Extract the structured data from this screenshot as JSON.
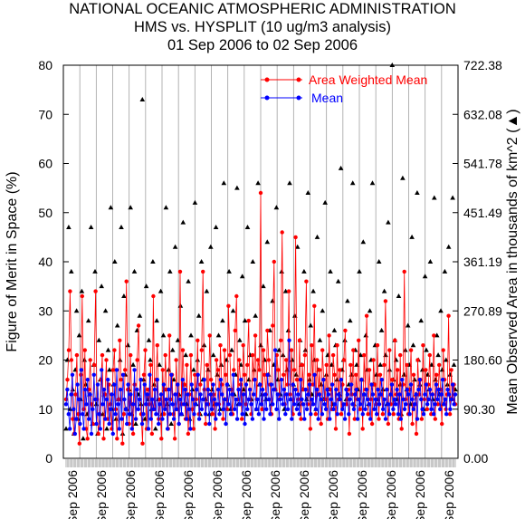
{
  "header": {
    "line1": "NATIONAL OCEANIC ATMOSPHERIC ADMINISTRATION",
    "line2": "HMS vs. HYSPLIT (10 ug/m3 analysis)",
    "line3": "01 Sep 2006 to 02 Sep 2006"
  },
  "chart_data": {
    "type": "scatter",
    "title": "HMS vs. HYSPLIT (10 ug/m3 analysis)",
    "ylabel": "Figure of Merit in Space (%)",
    "y2label": "Mean Observed Area in thousands of km^2 (▲)",
    "ylim": [
      0,
      80
    ],
    "y2lim": [
      0,
      722.38
    ],
    "yticks": [
      "0",
      "10",
      "20",
      "30",
      "40",
      "50",
      "60",
      "70",
      "80"
    ],
    "y2ticks": [
      "0.00",
      "90.30",
      "180.60",
      "270.89",
      "361.19",
      "451.49",
      "541.78",
      "632.08",
      "722.38"
    ],
    "xtick_label": "Sep 2006",
    "xtick_count": 14,
    "grid": "vertical lines",
    "legend_position": "top-right",
    "colors": {
      "weighted": "#ff0000",
      "mean": "#0000ff",
      "area": "#000000",
      "grid": "#a0a0a0"
    },
    "series": [
      {
        "name": "Area Weighted Mean",
        "marker": "circle",
        "color": "#ff0000",
        "values": [
          12,
          16,
          22,
          34,
          20,
          8,
          5,
          13,
          21,
          9,
          3,
          17,
          33,
          10,
          22,
          6,
          4,
          14,
          20,
          11,
          7,
          19,
          34,
          12,
          5,
          9,
          16,
          21,
          4,
          13,
          20,
          8,
          15,
          11,
          6,
          18,
          22,
          10,
          4,
          12,
          24,
          16,
          3,
          9,
          18,
          36,
          14,
          7,
          21,
          11,
          5,
          15,
          8,
          20,
          27,
          12,
          9,
          3,
          17,
          22,
          6,
          14,
          11,
          19,
          5,
          33,
          10,
          16,
          23,
          8,
          12,
          4,
          18,
          9,
          21,
          14,
          6,
          25,
          12,
          17,
          9,
          4,
          20,
          13,
          7,
          38,
          11,
          22,
          15,
          8,
          19,
          5,
          13,
          21,
          10,
          6,
          17,
          12,
          24,
          9,
          15,
          22,
          38,
          14,
          7,
          19,
          11,
          25,
          16,
          9,
          13,
          6,
          20,
          18,
          11,
          23,
          15,
          8,
          22,
          17,
          10,
          31,
          21,
          14,
          9,
          18,
          26,
          33,
          12,
          20,
          15,
          8,
          23,
          17,
          11,
          19,
          28,
          14,
          9,
          21,
          16,
          25,
          12,
          20,
          18,
          54,
          10,
          22,
          17,
          13,
          26,
          20,
          15,
          9,
          27,
          40,
          14,
          21,
          18,
          12,
          24,
          46,
          17,
          11,
          20,
          15,
          34,
          13,
          22,
          9,
          18,
          45,
          16,
          12,
          24,
          8,
          19,
          14,
          21,
          36,
          11,
          17,
          6,
          23,
          15,
          31,
          9,
          20,
          13,
          18,
          7,
          22,
          16,
          12,
          19,
          8,
          25,
          14,
          10,
          21,
          17,
          6,
          23,
          12,
          18,
          9,
          15,
          20,
          26,
          11,
          14,
          5,
          19,
          13,
          22,
          8,
          17,
          12,
          24,
          10,
          16,
          6,
          21,
          14,
          29,
          9,
          18,
          12,
          7,
          20,
          15,
          11,
          23,
          8,
          17,
          13,
          9,
          19,
          32,
          14,
          7,
          22,
          11,
          16,
          9,
          24,
          13,
          18,
          8,
          21,
          6,
          15,
          38,
          12,
          19,
          9,
          14,
          22,
          7,
          17,
          11,
          5,
          20,
          13,
          16,
          8,
          23,
          12,
          18,
          10,
          15,
          21,
          9,
          13,
          25,
          8,
          17,
          11,
          19,
          14,
          7,
          22,
          16,
          10,
          13,
          29,
          9,
          18,
          12,
          15,
          11
        ]
      },
      {
        "name": "Mean",
        "marker": "circle",
        "color": "#0000ff",
        "values": [
          11,
          14,
          9,
          6,
          13,
          17,
          10,
          5,
          8,
          15,
          12,
          7,
          18,
          9,
          6,
          14,
          11,
          16,
          8,
          13,
          5,
          10,
          17,
          12,
          7,
          15,
          9,
          6,
          18,
          11,
          14,
          8,
          12,
          16,
          7,
          10,
          13,
          5,
          15,
          9,
          18,
          11,
          6,
          14,
          8,
          17,
          12,
          10,
          7,
          15,
          9,
          13,
          6,
          11,
          18,
          8,
          14,
          10,
          12,
          16,
          7,
          9,
          15,
          11,
          13,
          6,
          17,
          8,
          12,
          10,
          14,
          9,
          16,
          7,
          11,
          13,
          8,
          15,
          10,
          12,
          6,
          14,
          9,
          17,
          11,
          8,
          13,
          10,
          15,
          7,
          12,
          9,
          16,
          11,
          14,
          8,
          13,
          10,
          6,
          15,
          12,
          9,
          11,
          14,
          17,
          8,
          13,
          10,
          12,
          16,
          9,
          11,
          14,
          7,
          13,
          10,
          15,
          12,
          8,
          11,
          14,
          9,
          16,
          13,
          10,
          12,
          7,
          15,
          11,
          14,
          9,
          13,
          17,
          10,
          12,
          8,
          14,
          11,
          16,
          9,
          13,
          7,
          15,
          10,
          12,
          14,
          11,
          8,
          13,
          16,
          10,
          12,
          9,
          15,
          11,
          14,
          8,
          13,
          10,
          17,
          12,
          9,
          15,
          11,
          14,
          22,
          10,
          13,
          8,
          12,
          16,
          11,
          14,
          9,
          13,
          10,
          24,
          12,
          8,
          15,
          11,
          14,
          10,
          13,
          9,
          16,
          12,
          11,
          8,
          14,
          10,
          13,
          15,
          9,
          12,
          11,
          17,
          10,
          14,
          8,
          13,
          12,
          9,
          16,
          11,
          10,
          14,
          13,
          8,
          12,
          15,
          10,
          11,
          14,
          9,
          13,
          12,
          16,
          10,
          11,
          8,
          14,
          13,
          9,
          12,
          15,
          11,
          10,
          13,
          14,
          8,
          12,
          11,
          16,
          9,
          13,
          10,
          14,
          12,
          11,
          8,
          15,
          13,
          10,
          12,
          9,
          14,
          11,
          13,
          16,
          10,
          12,
          8,
          14,
          11,
          9,
          13,
          15,
          10,
          12,
          11,
          14,
          9,
          13,
          8,
          16,
          12,
          10,
          11,
          14,
          13,
          9,
          15,
          12,
          10,
          11,
          13,
          8,
          14,
          16,
          12,
          10,
          9,
          13,
          15,
          11,
          12,
          14,
          10,
          13,
          9,
          11,
          15,
          12,
          14,
          10,
          13,
          16,
          11,
          12,
          9,
          14,
          13,
          10,
          12,
          15,
          11,
          13
        ]
      },
      {
        "name": "Mean Observed Area",
        "marker": "triangle",
        "color": "#000000",
        "values": [
          6,
          20,
          47,
          10,
          38,
          14,
          5,
          18,
          30,
          8,
          25,
          12,
          34,
          4,
          20,
          15,
          9,
          28,
          13,
          47,
          7,
          19,
          38,
          11,
          5,
          24,
          16,
          35,
          9,
          13,
          30,
          6,
          22,
          18,
          51,
          10,
          15,
          40,
          8,
          27,
          12,
          20,
          47,
          5,
          33,
          17,
          10,
          23,
          14,
          51,
          9,
          19,
          38,
          7,
          26,
          13,
          29,
          11,
          73,
          16,
          8,
          35,
          12,
          24,
          20,
          10,
          40,
          15,
          6,
          28,
          12,
          19,
          34,
          9,
          25,
          14,
          51,
          11,
          18,
          38,
          7,
          22,
          16,
          43,
          10,
          24,
          13,
          31,
          9,
          48,
          15,
          21,
          11,
          36,
          8,
          25,
          14,
          18,
          52,
          11,
          20,
          29,
          9,
          40,
          16,
          23,
          12,
          34,
          18,
          9,
          43,
          14,
          21,
          11,
          47,
          17,
          25,
          10,
          19,
          28,
          56,
          12,
          20,
          15,
          38,
          10,
          22,
          30,
          13,
          17,
          55,
          11,
          24,
          19,
          37,
          14,
          28,
          9,
          47,
          16,
          21,
          12,
          40,
          18,
          29,
          10,
          56,
          15,
          23,
          13,
          35,
          20,
          12,
          44,
          17,
          26,
          11,
          32,
          19,
          14,
          51,
          16,
          22,
          13,
          38,
          21,
          10,
          34,
          18,
          26,
          56,
          12,
          20,
          15,
          29,
          17,
          43,
          11,
          24,
          19,
          14,
          38,
          22,
          12,
          54,
          16,
          27,
          13,
          34,
          20,
          10,
          45,
          18,
          24,
          15,
          30,
          12,
          52,
          17,
          21,
          14,
          38,
          19,
          11,
          26,
          23,
          16,
          36,
          13,
          59,
          18,
          20,
          24,
          12,
          32,
          15,
          28,
          17,
          56,
          11,
          22,
          19,
          14,
          38,
          21,
          16,
          44,
          13,
          25,
          18,
          11,
          30,
          20,
          56,
          15,
          23,
          17,
          12,
          40,
          19,
          26,
          14,
          34,
          21,
          11,
          48,
          18,
          13,
          80,
          16,
          24,
          20,
          12,
          33,
          15,
          9,
          57,
          17,
          22,
          14,
          27,
          19,
          11,
          45,
          23,
          16,
          13,
          54,
          20,
          15,
          28,
          18,
          10,
          37,
          22,
          17,
          14,
          40,
          19,
          12,
          53,
          16,
          25,
          21,
          13,
          30,
          18,
          11,
          38,
          20,
          15,
          43,
          17,
          12,
          53,
          19,
          14
        ]
      }
    ]
  }
}
